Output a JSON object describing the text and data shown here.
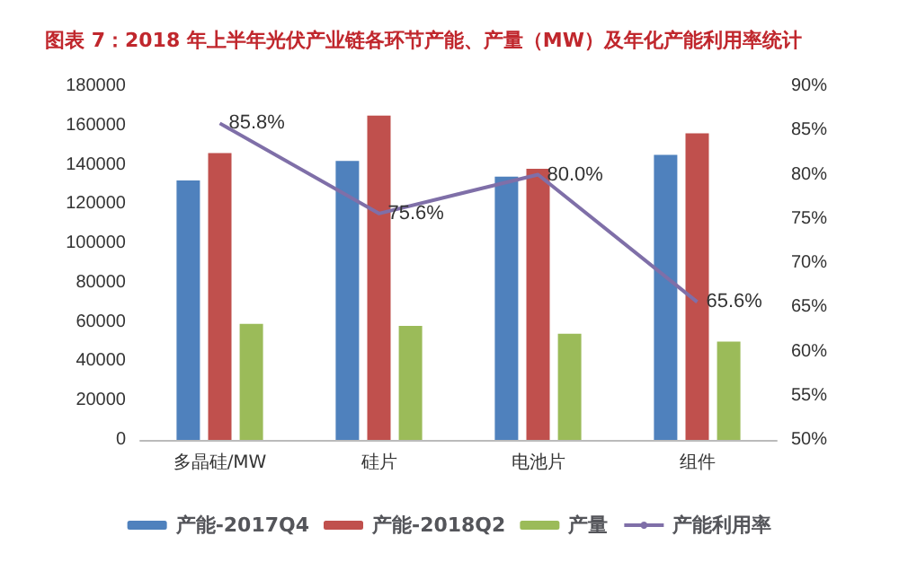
{
  "chart_data": {
    "type": "bar",
    "title": "图表 7：2018 年上半年光伏产业链各环节产能、产量（MW）及年化产能利用率统计",
    "categories": [
      "多晶硅/MW",
      "硅片",
      "电池片",
      "组件"
    ],
    "series": [
      {
        "name": "产能-2017Q4",
        "color": "#4f81bd",
        "values": [
          132000,
          142000,
          134000,
          145000
        ]
      },
      {
        "name": "产能-2018Q2",
        "color": "#c0504d",
        "values": [
          146000,
          165000,
          138000,
          156000
        ]
      },
      {
        "name": "产量",
        "color": "#9bbb59",
        "values": [
          59000,
          58000,
          54000,
          50000
        ]
      },
      {
        "name": "产能利用率",
        "type": "line",
        "axis": "y2",
        "color": "#7f6fa8",
        "values": [
          85.8,
          75.6,
          80.0,
          65.6
        ],
        "value_labels": [
          "85.8%",
          "75.6%",
          "80.0%",
          "65.6%"
        ]
      }
    ],
    "ylim": [
      0,
      180000
    ],
    "yticks": [
      0,
      20000,
      40000,
      60000,
      80000,
      100000,
      120000,
      140000,
      160000,
      180000
    ],
    "y2lim": [
      50,
      90
    ],
    "y2ticks": [
      {
        "value": 50,
        "label": "50%"
      },
      {
        "value": 55,
        "label": "55%"
      },
      {
        "value": 60,
        "label": "60%"
      },
      {
        "value": 65,
        "label": "65%"
      },
      {
        "value": 70,
        "label": "70%"
      },
      {
        "value": 75,
        "label": "75%"
      },
      {
        "value": 80,
        "label": "80%"
      },
      {
        "value": 85,
        "label": "85%"
      },
      {
        "value": 90,
        "label": "90%"
      }
    ],
    "grid": false,
    "legend": "bottom",
    "marker": "none"
  }
}
